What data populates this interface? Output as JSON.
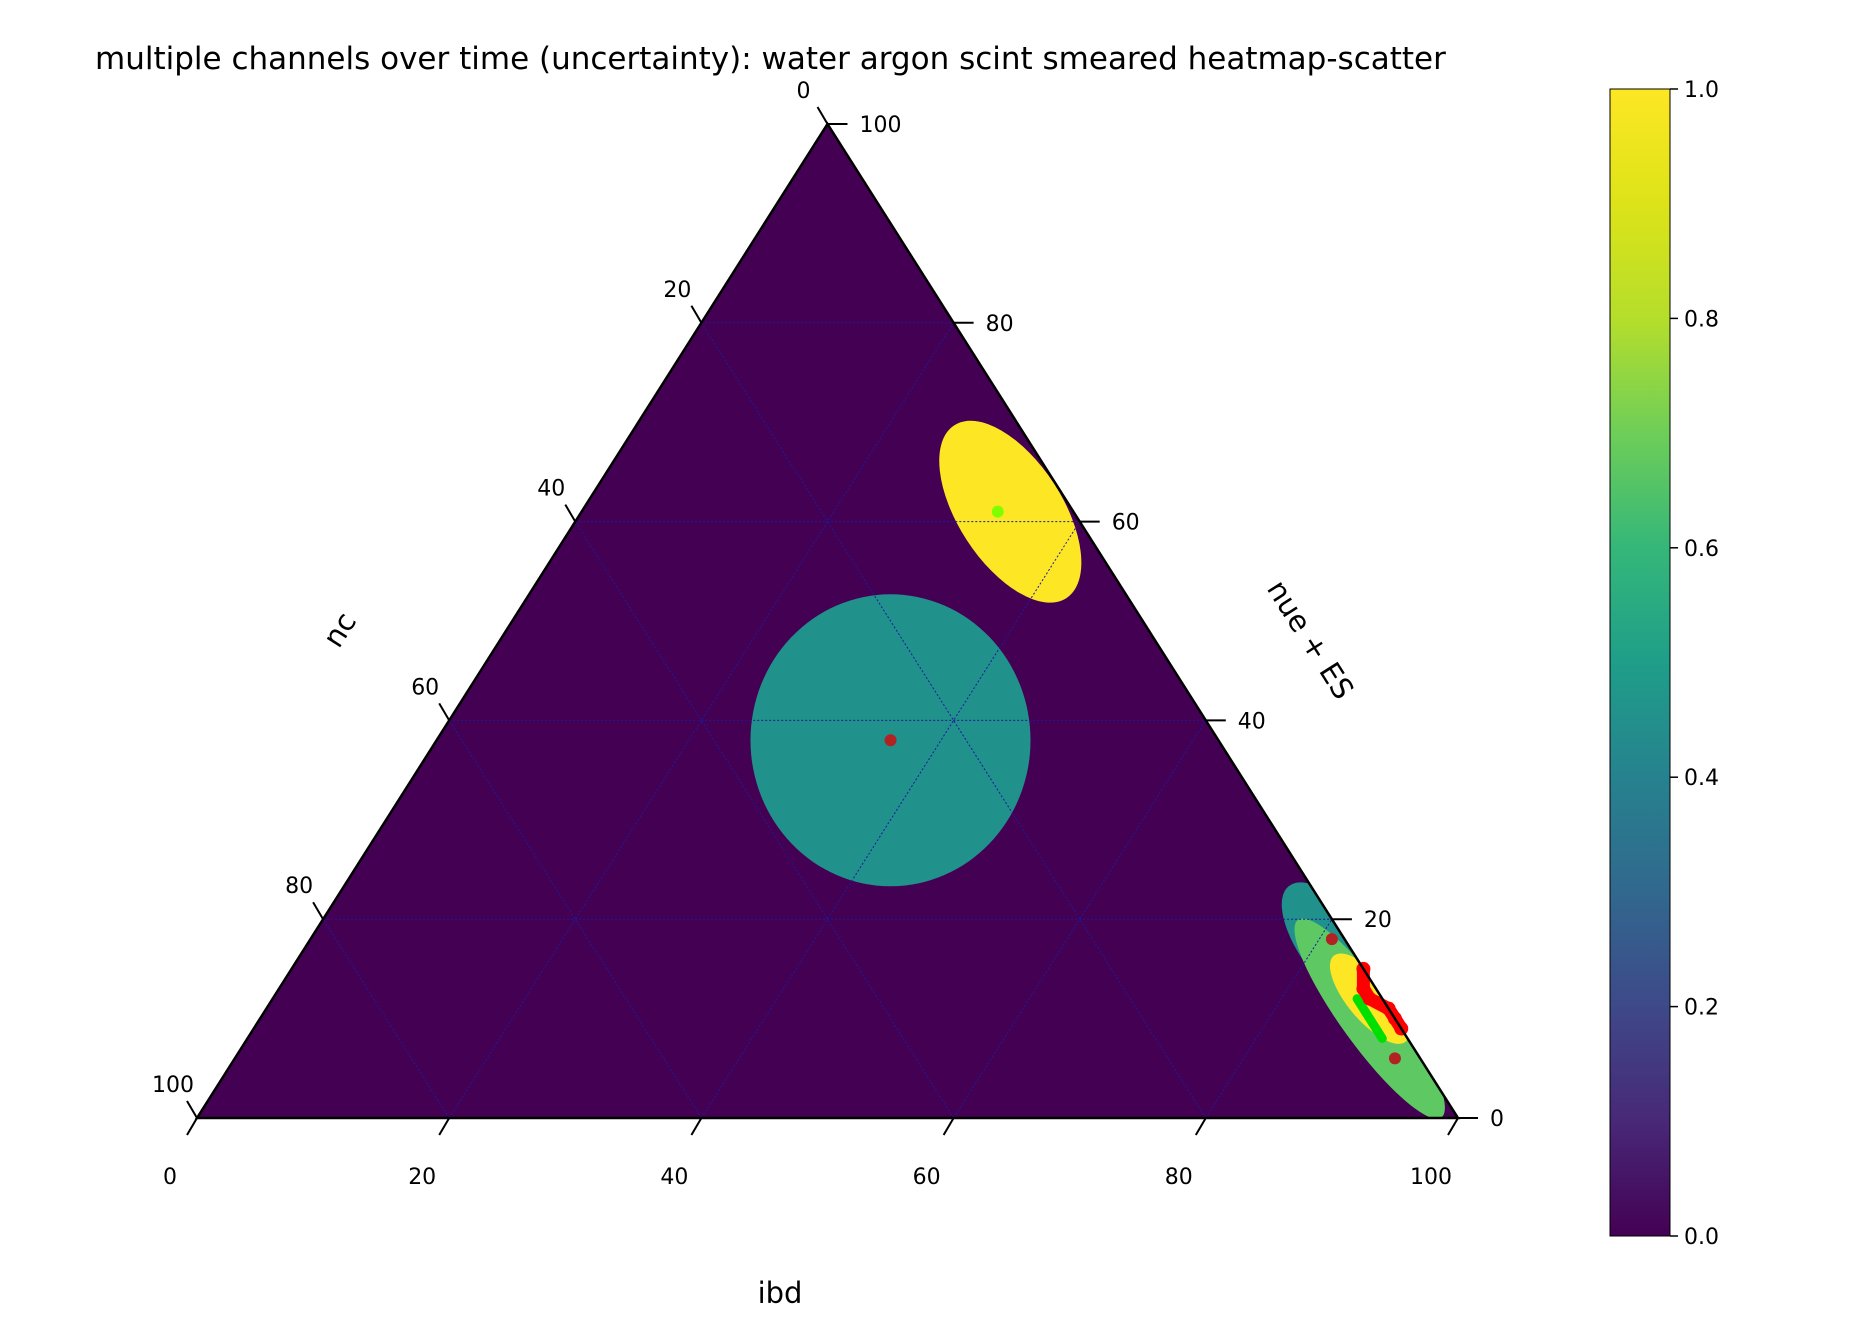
{
  "chart_data": {
    "type": "heatmap",
    "subtype": "ternary-hexbin-with-scatter",
    "title": "multiple channels over time (uncertainty): water argon scint smeared heatmap-scatter",
    "axes": {
      "bottom": {
        "label": "ibd",
        "ticks": [
          "0",
          "20",
          "40",
          "60",
          "80",
          "100"
        ]
      },
      "right": {
        "label": "nue + ES",
        "ticks": [
          "0",
          "20",
          "40",
          "60",
          "80",
          "100"
        ]
      },
      "left": {
        "label": "nc",
        "ticks": [
          "0",
          "20",
          "40",
          "60",
          "80",
          "100"
        ]
      }
    },
    "range": [
      0,
      100
    ],
    "grid": true,
    "grid_step": 20,
    "background_value": 0.0,
    "colorbar": {
      "colormap": "viridis",
      "range": [
        0.0,
        1.0
      ],
      "ticks": [
        "0.0",
        "0.2",
        "0.4",
        "0.6",
        "0.8",
        "1.0"
      ],
      "tick_values": [
        0.0,
        0.2,
        0.4,
        0.6,
        0.8,
        1.0
      ],
      "placement": "right"
    },
    "regions": [
      {
        "name": "central blob",
        "value": 0.5,
        "color": "#21918c",
        "center": {
          "ibd": 36,
          "nue_es": 38,
          "nc": 26
        },
        "shape": "round"
      },
      {
        "name": "upper-right ellipse",
        "value": 1.0,
        "color": "#fde725",
        "center": {
          "ibd": 34,
          "nue_es": 61,
          "nc": 5
        },
        "shape": "elongated"
      },
      {
        "name": "lower-right cluster",
        "value": 0.5,
        "color": "#21918c",
        "center": {
          "ibd": 82,
          "nue_es": 17,
          "nc": 1
        },
        "shape": "elongated"
      },
      {
        "name": "edge streak",
        "value": 0.75,
        "color": "#5ec962",
        "center": {
          "ibd": 88,
          "nue_es": 10,
          "nc": 2
        },
        "shape": "elongated"
      },
      {
        "name": "edge core",
        "value": 1.0,
        "color": "#fde725",
        "center": {
          "ibd": 87,
          "nue_es": 12,
          "nc": 1
        },
        "shape": "elongated"
      }
    ],
    "points": [
      {
        "ibd": 33,
        "nue_es": 61,
        "nc": 6,
        "color": "#7fff00"
      },
      {
        "ibd": 36,
        "nue_es": 38,
        "nc": 26,
        "color": "#b22222"
      },
      {
        "ibd": 81,
        "nue_es": 18,
        "nc": 1,
        "color": "#b22222"
      },
      {
        "ibd": 92,
        "nue_es": 6,
        "nc": 2,
        "color": "#b22222"
      }
    ],
    "trajectory": {
      "color": "#ff0000",
      "points": [
        {
          "ibd": 85,
          "nue_es": 15,
          "nc": 0
        },
        {
          "ibd": 86,
          "nue_es": 13,
          "nc": 1
        },
        {
          "ibd": 87,
          "nue_es": 12,
          "nc": 1
        },
        {
          "ibd": 89,
          "nue_es": 11,
          "nc": 0
        },
        {
          "ibd": 90,
          "nue_es": 10,
          "nc": 0
        },
        {
          "ibd": 91,
          "nue_es": 9,
          "nc": 0
        }
      ]
    },
    "trajectory_halo": {
      "color": "#00e000",
      "points": [
        {
          "ibd": 86,
          "nue_es": 12,
          "nc": 2
        },
        {
          "ibd": 88,
          "nue_es": 10,
          "nc": 2
        },
        {
          "ibd": 90,
          "nue_es": 8,
          "nc": 2
        }
      ]
    }
  }
}
